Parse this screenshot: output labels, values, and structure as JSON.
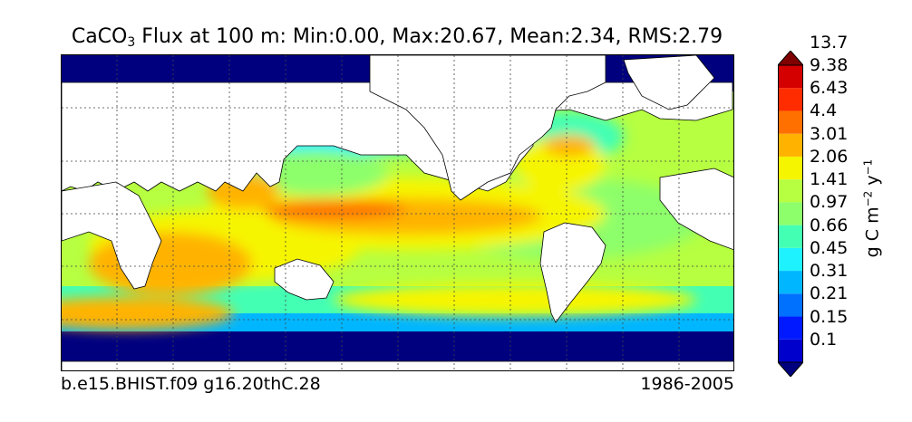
{
  "title": {
    "prefix": "CaCO",
    "subscript": "3",
    "rest": " Flux at 100 m: Min:0.00, Max:20.67, Mean:2.34, RMS:2.79"
  },
  "footer": {
    "case_name": "b.e15.BHIST.f09 g16.20thC.28",
    "period": "1986-2005"
  },
  "colorbar": {
    "units": {
      "base1": "g C m",
      "exp1": "−2",
      "base2": " y",
      "exp2": "−1"
    },
    "boundaries": [
      "0.1",
      "0.15",
      "0.21",
      "0.31",
      "0.45",
      "0.66",
      "0.97",
      "1.41",
      "2.06",
      "3.01",
      "4.4",
      "6.43",
      "9.38",
      "13.7"
    ],
    "colors": [
      "#00007f",
      "#0000cd",
      "#0019ff",
      "#0070ff",
      "#00b6ff",
      "#1ff2ff",
      "#43ffb4",
      "#8dff6b",
      "#b6ff41",
      "#f6f500",
      "#ffb300",
      "#ff7000",
      "#ff2c00",
      "#d40000",
      "#7f0000"
    ],
    "extend": "both"
  },
  "map": {
    "projection": "cylindrical equidistant",
    "land_color": "#ffffff",
    "coastline_color": "#000000",
    "grid": "dashed",
    "grid_lon_step_deg": 30,
    "grid_lat_step_deg": 30
  }
}
